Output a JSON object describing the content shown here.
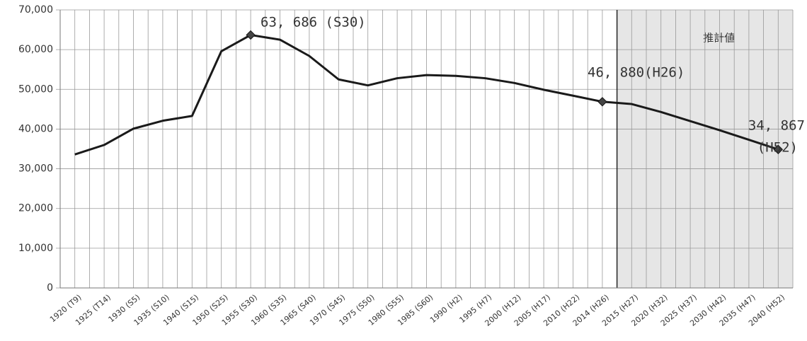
{
  "chart_data": {
    "type": "line",
    "categories": [
      "1920 (T9)",
      "1925 (T14)",
      "1930 (S5)",
      "1935 (S10)",
      "1940 (S15)",
      "1950 (S25)",
      "1955 (S30)",
      "1960 (S35)",
      "1965 (S40)",
      "1970 (S45)",
      "1975 (S50)",
      "1980 (S55)",
      "1985 (S60)",
      "1990 (H2)",
      "1995 (H7)",
      "2000 (H12)",
      "2005 (H17)",
      "2010 (H22)",
      "2014 (H26)",
      "2015 (H27)",
      "2020 (H32)",
      "2025 (H37)",
      "2030 (H42)",
      "2035 (H47)",
      "2040 (H52)"
    ],
    "series": [
      {
        "color": "#1a1a1a",
        "values": [
          33600,
          36000,
          40100,
          42100,
          43300,
          59600,
          63686,
          62500,
          58400,
          52500,
          51000,
          52800,
          53600,
          53400,
          52800,
          51600,
          49900,
          48400,
          46880,
          46300,
          44300,
          42000,
          39700,
          37300,
          34867
        ],
        "markers": [
          6,
          18,
          24
        ]
      }
    ],
    "ylim": [
      0,
      70000
    ],
    "yticks": [
      0,
      {
        "value": 10000,
        "label": "10,000"
      },
      {
        "value": 20000,
        "label": "20,000"
      },
      {
        "value": 30000,
        "label": "30,000"
      },
      {
        "value": 40000,
        "label": "40,000"
      },
      {
        "value": 50000,
        "label": "50,000"
      },
      {
        "value": 60000,
        "label": "60,000"
      },
      {
        "value": 70000,
        "label": "70,000"
      }
    ],
    "grid": true,
    "shaded_region": {
      "label": "推計値",
      "from": "2015 (H27)",
      "color": "#e6e6e6"
    },
    "annotations": [
      {
        "text": "63, 686 (S30)"
      },
      {
        "text": "46, 880(H26)"
      },
      {
        "text": "34, 867"
      },
      {
        "text": "(H52)"
      }
    ]
  }
}
